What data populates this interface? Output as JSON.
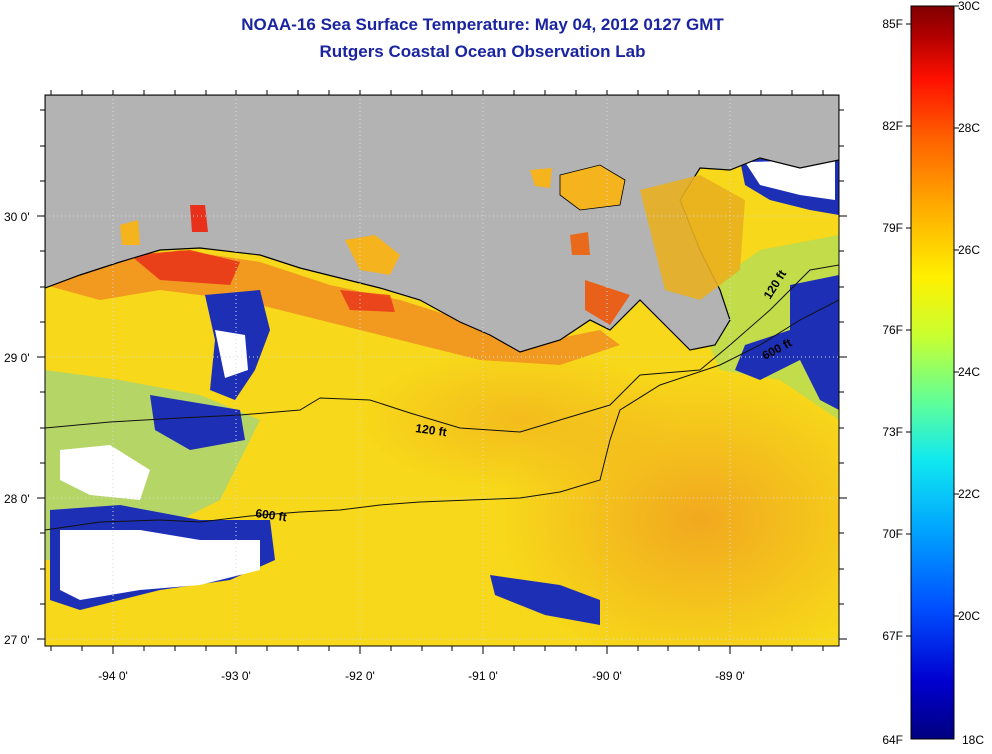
{
  "header": {
    "title": "NOAA-16 Sea Surface Temperature:  May 04, 2012 0127 GMT",
    "subtitle": "Rutgers Coastal Ocean Observation Lab"
  },
  "map": {
    "lat_ticks": [
      "30 0'",
      "29 0'",
      "28 0'",
      "27 0'"
    ],
    "lon_ticks": [
      "-94 0'",
      "-93 0'",
      "-92 0'",
      "-91 0'",
      "-90 0'",
      "-89 0'"
    ],
    "isobath_labels": [
      "120 ft",
      "600 ft",
      "120 ft",
      "600 ft"
    ],
    "colors": {
      "land": "#b3b3b3",
      "cloud": "#ffffff",
      "warm": "#f5a623",
      "mid": "#f7e21b",
      "cool": "#1e2fb0",
      "grid": "#d4d4d4"
    }
  },
  "colorbar": {
    "fahrenheit_labels": [
      "85F",
      "82F",
      "79F",
      "76F",
      "73F",
      "70F",
      "67F",
      "64F"
    ],
    "celsius_labels": [
      "30C",
      "28C",
      "26C",
      "24C",
      "22C",
      "20C",
      "18C"
    ],
    "colors": [
      "#00007f",
      "#0000d0",
      "#0050ff",
      "#00a0ff",
      "#10e8f0",
      "#60ff98",
      "#c8ff30",
      "#fff000",
      "#ffb000",
      "#ff6000",
      "#ff1000",
      "#b00000",
      "#800000"
    ]
  }
}
